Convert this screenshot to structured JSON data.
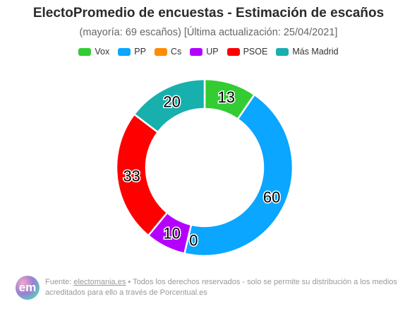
{
  "header": {
    "title": "ElectoPromedio de encuestas - Estimación de escaños",
    "subtitle": "(mayoría: 69 escaños) [Última actualización: 25/04/2021]"
  },
  "chart_data": {
    "type": "pie",
    "variant": "donut",
    "title": "ElectoPromedio de encuestas - Estimación de escaños",
    "subtitle": "(mayoría: 69 escaños) [Última actualización: 25/04/2021]",
    "legend_position": "top",
    "categories": [
      "Vox",
      "PP",
      "Cs",
      "UP",
      "PSOE",
      "Más Madrid"
    ],
    "values": [
      13,
      60,
      0,
      10,
      33,
      20
    ],
    "colors": [
      "#33cc33",
      "#0aa6ff",
      "#ff8c00",
      "#b300ff",
      "#ff0000",
      "#17b0ad"
    ],
    "data_labels": [
      "13",
      "60",
      "0",
      "10",
      "33",
      "20"
    ]
  },
  "footer": {
    "logo_text": "em",
    "source_prefix": "Fuente: ",
    "source_link": "electomania.es",
    "source_rest": " • Todos los derechos reservados - solo se permite su distribución a los medios acreditados para ello a través de Porcentual.es"
  }
}
